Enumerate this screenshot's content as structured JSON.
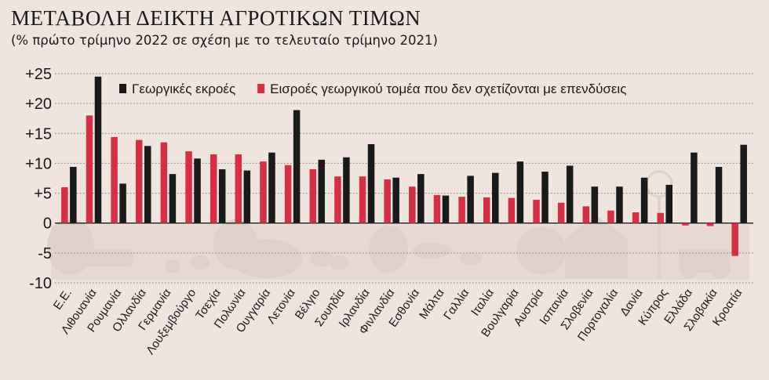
{
  "chart_data": {
    "type": "bar",
    "title": "ΜΕΤΑΒΟΛΗ ΔΕΙΚΤΗ ΑΓΡΟΤΙΚΩΝ ΤΙΜΩΝ",
    "subtitle": "(% πρώτο τρίμηνο 2022 σε σχέση με το τελευταίο τρίμηνο 2021)",
    "ylim": [
      -10,
      25
    ],
    "yticks": [
      "+25",
      "+20",
      "+15",
      "+10",
      "+5",
      "0",
      "-5",
      "-10"
    ],
    "ytick_values": [
      25,
      20,
      15,
      10,
      5,
      0,
      -5,
      -10
    ],
    "legend_position": "top",
    "categories": [
      "Ε.Ε.",
      "Λιθουανία",
      "Ρουμανία",
      "Ολλανδία",
      "Γερμανία",
      "Λουξεμβούργο",
      "Τσεχία",
      "Πολωνία",
      "Ουγγαρία",
      "Λετονία",
      "Βέλγιο",
      "Σουηδία",
      "Ιρλανδία",
      "Φινλανδία",
      "Εσθονία",
      "Μάλτα",
      "Γαλλία",
      "Ιταλία",
      "Βουλγαρία",
      "Αυστρία",
      "Ισπανία",
      "Σλοβενία",
      "Πορτογαλία",
      "Δανία",
      "Κύπρος",
      "Ελλάδα",
      "Σλοβακία",
      "Κροατία"
    ],
    "series": [
      {
        "name": "Εισροές γεωργικού τομέα που δεν σχετίζονται με επενδύσεις",
        "color": "#d32f45",
        "values": [
          6.0,
          18.0,
          14.4,
          13.9,
          13.5,
          12.0,
          11.5,
          11.5,
          10.3,
          9.7,
          9.0,
          7.8,
          7.8,
          7.3,
          6.1,
          4.7,
          4.4,
          4.3,
          4.2,
          3.9,
          3.4,
          2.8,
          2.1,
          1.8,
          1.7,
          -0.4,
          -0.5,
          -5.5
        ]
      },
      {
        "name": "Γεωργικές εκροές",
        "color": "#1a1a1a",
        "values": [
          9.4,
          24.5,
          6.6,
          12.9,
          8.2,
          10.8,
          9.0,
          8.8,
          11.8,
          18.9,
          10.6,
          11.0,
          13.2,
          7.6,
          8.2,
          4.6,
          7.9,
          8.4,
          10.3,
          8.6,
          9.6,
          6.1,
          6.1,
          7.6,
          6.4,
          11.8,
          9.4,
          13.1
        ]
      }
    ],
    "legend": [
      {
        "label": "Γεωργικές εκροές",
        "color": "#1a1a1a"
      },
      {
        "label": "Εισροές γεωργικού τομέα που δεν σχετίζονται με επενδύσεις",
        "color": "#d32f45"
      }
    ]
  }
}
